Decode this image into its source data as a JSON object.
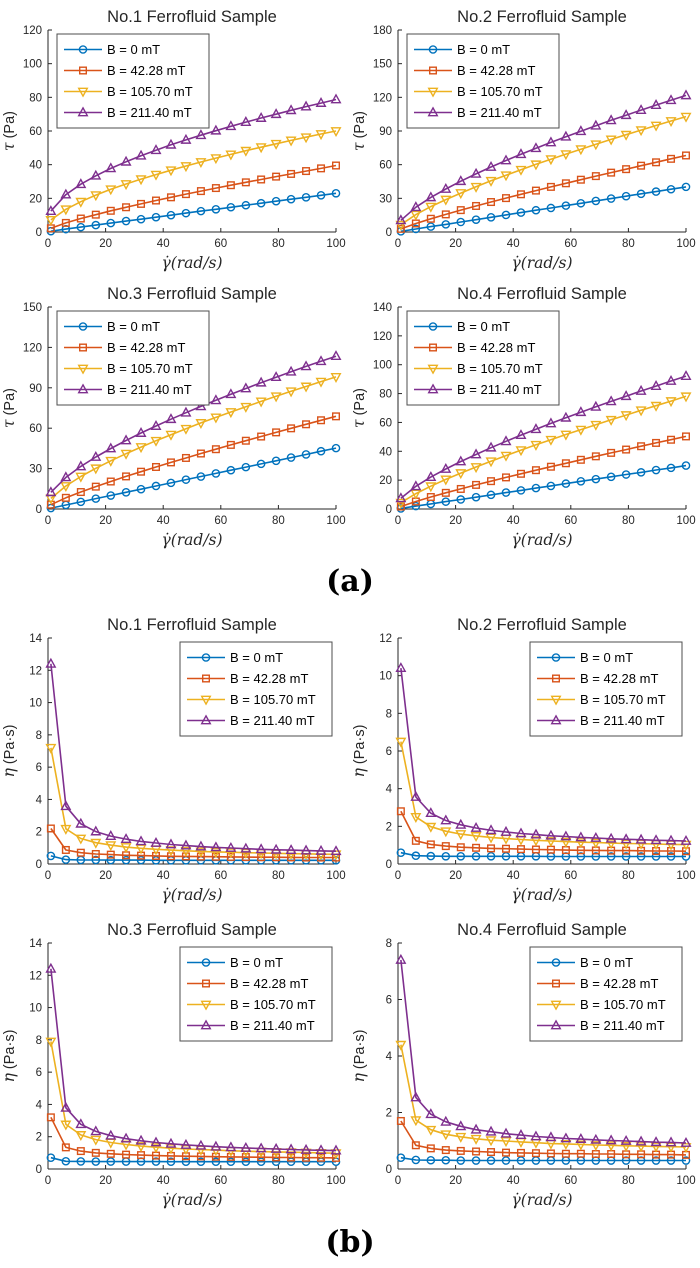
{
  "panel_labels": {
    "a": "(a)",
    "b": "(b)"
  },
  "axis_color": "#262626",
  "series_meta": [
    {
      "label": "B = 0 mT",
      "color": "#0072BD",
      "marker": "circle"
    },
    {
      "label": "B = 42.28 mT",
      "color": "#D95319",
      "marker": "square"
    },
    {
      "label": "B = 105.70 mT",
      "color": "#EDB120",
      "marker": "triangle-down"
    },
    {
      "label": "B = 211.40 mT",
      "color": "#7E2F8E",
      "marker": "triangle-up"
    }
  ],
  "x_values": [
    1,
    6.2,
    11.4,
    16.6,
    21.8,
    27.1,
    32.3,
    37.5,
    42.7,
    47.9,
    53.1,
    58.3,
    63.5,
    68.7,
    74,
    79.2,
    84.4,
    89.6,
    94.8,
    100
  ],
  "chart_data": [
    {
      "id": "a1",
      "type": "line",
      "panel": "a",
      "title": "No.1 Ferrofluid Sample",
      "xlabel": "γ̇(rad/s)",
      "ylabel_symbol": "τ",
      "ylabel_unit": " (Pa)",
      "xlim": [
        0,
        100
      ],
      "xticks": [
        0,
        20,
        40,
        60,
        80,
        100
      ],
      "ylim": [
        0,
        120
      ],
      "yticks": [
        0,
        20,
        40,
        60,
        80,
        100,
        120
      ],
      "legend_position": "northwest",
      "grid": false,
      "series": [
        {
          "name": "B = 0 mT",
          "values": [
            0.5,
            1.7,
            2.9,
            4.1,
            5.3,
            6.5,
            7.6,
            8.8,
            10,
            11.2,
            12.4,
            13.5,
            14.7,
            15.9,
            17.1,
            18.3,
            19.5,
            20.6,
            21.8,
            23
          ]
        },
        {
          "name": "B = 42.28 mT",
          "values": [
            2.2,
            5.4,
            8,
            10.3,
            12.6,
            14.7,
            16.7,
            18.7,
            20.6,
            22.5,
            24.3,
            26.1,
            27.8,
            29.5,
            31.2,
            32.9,
            34.5,
            36.2,
            37.8,
            39.5
          ]
        },
        {
          "name": "B = 105.70 mT",
          "values": [
            7.2,
            13.5,
            18,
            21.9,
            25.4,
            28.5,
            31.4,
            34.1,
            36.7,
            39.2,
            41.6,
            43.9,
            46.1,
            48.3,
            50.4,
            52.4,
            54.4,
            56.3,
            58.2,
            60
          ]
        },
        {
          "name": "B = 211.40 mT",
          "values": [
            12.4,
            22.2,
            28.4,
            33.4,
            37.8,
            41.7,
            45.3,
            48.6,
            51.8,
            54.7,
            57.5,
            60.2,
            62.8,
            65.3,
            67.7,
            70,
            72.3,
            74.5,
            76.6,
            78.7
          ]
        }
      ]
    },
    {
      "id": "a2",
      "type": "line",
      "panel": "a",
      "title": "No.2 Ferrofluid Sample",
      "xlabel": "γ̇(rad/s)",
      "ylabel_symbol": "τ",
      "ylabel_unit": " (Pa)",
      "xlim": [
        0,
        100
      ],
      "xticks": [
        0,
        20,
        40,
        60,
        80,
        100
      ],
      "ylim": [
        0,
        180
      ],
      "yticks": [
        0,
        30,
        60,
        90,
        120,
        150,
        180
      ],
      "legend_position": "northwest",
      "grid": false,
      "series": [
        {
          "name": "B = 0 mT",
          "values": [
            0.6,
            2.7,
            4.8,
            6.8,
            8.9,
            11,
            13.1,
            15.2,
            17.3,
            19.4,
            21.4,
            23.5,
            25.6,
            27.7,
            29.8,
            31.9,
            34,
            36,
            38.1,
            40.2
          ]
        },
        {
          "name": "B = 42.28 mT",
          "values": [
            2.8,
            7.6,
            11.8,
            15.7,
            19.5,
            23.2,
            26.7,
            30.2,
            33.6,
            36.9,
            40.2,
            43.4,
            46.6,
            49.8,
            52.9,
            56,
            59.1,
            62.1,
            65.2,
            68.2
          ]
        },
        {
          "name": "B = 105.70 mT",
          "values": [
            6.5,
            15.5,
            22.6,
            28.9,
            34.7,
            40.3,
            45.6,
            50.6,
            55.5,
            60.3,
            64.9,
            69.4,
            73.8,
            78.2,
            82.5,
            86.7,
            90.8,
            94.9,
            98.9,
            102.8
          ]
        },
        {
          "name": "B = 211.40 mT",
          "values": [
            10.4,
            22.1,
            30.8,
            38.3,
            45.3,
            51.8,
            57.9,
            63.7,
            69.3,
            74.6,
            79.8,
            84.9,
            89.8,
            94.7,
            99.5,
            104.1,
            108.6,
            113.1,
            117.4,
            121.7
          ]
        }
      ]
    },
    {
      "id": "a3",
      "type": "line",
      "panel": "a",
      "title": "No.3 Ferrofluid Sample",
      "xlabel": "γ̇(rad/s)",
      "ylabel_symbol": "τ",
      "ylabel_unit": " (Pa)",
      "xlim": [
        0,
        100
      ],
      "xticks": [
        0,
        20,
        40,
        60,
        80,
        100
      ],
      "ylim": [
        0,
        150
      ],
      "yticks": [
        0,
        30,
        60,
        90,
        120,
        150
      ],
      "legend_position": "northwest",
      "grid": false,
      "series": [
        {
          "name": "B = 0 mT",
          "values": [
            0.7,
            3,
            5.3,
            7.7,
            10,
            12.4,
            14.7,
            17.1,
            19.4,
            21.8,
            24.1,
            26.4,
            28.8,
            31.1,
            33.5,
            35.8,
            38.2,
            40.5,
            42.9,
            45.2
          ]
        },
        {
          "name": "B = 42.28 mT",
          "values": [
            3.2,
            8.3,
            12.6,
            16.6,
            20.4,
            24.2,
            27.7,
            31.2,
            34.6,
            37.9,
            41.2,
            44.4,
            47.6,
            50.7,
            53.8,
            56.9,
            59.9,
            62.9,
            65.9,
            68.8
          ]
        },
        {
          "name": "B = 105.70 mT",
          "values": [
            7.9,
            17.1,
            24.1,
            30.2,
            35.8,
            41.1,
            46,
            50.7,
            55.2,
            59.6,
            63.9,
            68,
            72,
            75.9,
            79.9,
            83.7,
            87.4,
            91,
            94.6,
            98.1
          ]
        },
        {
          "name": "B = 211.40 mT",
          "values": [
            12.4,
            23.5,
            31.6,
            38.6,
            44.9,
            50.9,
            56.4,
            61.6,
            66.7,
            71.5,
            76.2,
            80.7,
            85.2,
            89.5,
            93.8,
            97.9,
            101.9,
            105.9,
            109.7,
            113.5
          ]
        }
      ]
    },
    {
      "id": "a4",
      "type": "line",
      "panel": "a",
      "title": "No.4 Ferrofluid Sample",
      "xlabel": "γ̇(rad/s)",
      "ylabel_symbol": "τ",
      "ylabel_unit": " (Pa)",
      "xlim": [
        0,
        100
      ],
      "xticks": [
        0,
        20,
        40,
        60,
        80,
        100
      ],
      "ylim": [
        0,
        140
      ],
      "yticks": [
        0,
        20,
        40,
        60,
        80,
        100,
        120,
        140
      ],
      "legend_position": "northwest",
      "grid": false,
      "series": [
        {
          "name": "B = 0 mT",
          "values": [
            0.4,
            2,
            3.5,
            5.1,
            6.6,
            8.2,
            9.8,
            11.4,
            12.9,
            14.5,
            16,
            17.6,
            19.2,
            20.7,
            22.3,
            23.9,
            25.4,
            27,
            28.5,
            30.1
          ]
        },
        {
          "name": "B = 42.28 mT",
          "values": [
            1.7,
            5.2,
            8.3,
            11.2,
            13.9,
            16.7,
            19.3,
            21.9,
            24.4,
            26.9,
            29.3,
            31.7,
            34.1,
            36.5,
            38.9,
            41.2,
            43.5,
            45.8,
            48,
            50.3
          ]
        },
        {
          "name": "B = 105.70 mT",
          "values": [
            4.4,
            10.7,
            15.8,
            20.5,
            24.9,
            29.1,
            33.1,
            37,
            40.8,
            44.5,
            48,
            51.6,
            55,
            58.4,
            61.8,
            65.1,
            68.4,
            71.6,
            74.8,
            78.1
          ]
        },
        {
          "name": "B = 211.40 mT",
          "values": [
            7.4,
            15.7,
            22.1,
            27.7,
            32.9,
            37.8,
            42.5,
            46.9,
            51.2,
            55.3,
            59.3,
            63.2,
            67.1,
            70.8,
            74.6,
            78.2,
            81.8,
            85.2,
            88.7,
            92.1
          ]
        }
      ]
    },
    {
      "id": "b1",
      "type": "line",
      "panel": "b",
      "title": "No.1 Ferrofluid Sample",
      "xlabel": "γ̇(rad/s)",
      "ylabel_symbol": "η",
      "ylabel_unit": " (Pa·s)",
      "xlim": [
        0,
        100
      ],
      "xticks": [
        0,
        20,
        40,
        60,
        80,
        100
      ],
      "ylim": [
        0,
        14
      ],
      "yticks": [
        0,
        2,
        4,
        6,
        8,
        10,
        12,
        14
      ],
      "legend_position": "northeast",
      "grid": false,
      "series": [
        {
          "name": "B = 0 mT",
          "values": [
            0.5,
            0.27,
            0.25,
            0.25,
            0.24,
            0.24,
            0.24,
            0.23,
            0.23,
            0.23,
            0.23,
            0.23,
            0.23,
            0.23,
            0.23,
            0.23,
            0.23,
            0.23,
            0.23,
            0.23
          ]
        },
        {
          "name": "B = 42.28 mT",
          "values": [
            2.2,
            0.87,
            0.7,
            0.62,
            0.58,
            0.54,
            0.52,
            0.5,
            0.48,
            0.47,
            0.46,
            0.45,
            0.44,
            0.43,
            0.42,
            0.42,
            0.41,
            0.4,
            0.4,
            0.4
          ]
        },
        {
          "name": "B = 105.70 mT",
          "values": [
            7.2,
            2.18,
            1.58,
            1.32,
            1.17,
            1.05,
            0.97,
            0.91,
            0.86,
            0.82,
            0.78,
            0.75,
            0.73,
            0.7,
            0.68,
            0.66,
            0.64,
            0.63,
            0.61,
            0.6
          ]
        },
        {
          "name": "B = 211.40 mT",
          "values": [
            12.4,
            3.58,
            2.49,
            2.01,
            1.73,
            1.54,
            1.4,
            1.3,
            1.21,
            1.14,
            1.08,
            1.03,
            0.99,
            0.95,
            0.91,
            0.88,
            0.86,
            0.83,
            0.81,
            0.79
          ]
        }
      ]
    },
    {
      "id": "b2",
      "type": "line",
      "panel": "b",
      "title": "No.2 Ferrofluid Sample",
      "xlabel": "γ̇(rad/s)",
      "ylabel_symbol": "η",
      "ylabel_unit": " (Pa·s)",
      "xlim": [
        0,
        100
      ],
      "xticks": [
        0,
        20,
        40,
        60,
        80,
        100
      ],
      "ylim": [
        0,
        12
      ],
      "yticks": [
        0,
        2,
        4,
        6,
        8,
        10,
        12
      ],
      "legend_position": "northeast",
      "grid": false,
      "series": [
        {
          "name": "B = 0 mT",
          "values": [
            0.6,
            0.44,
            0.42,
            0.41,
            0.41,
            0.41,
            0.41,
            0.41,
            0.41,
            0.41,
            0.4,
            0.4,
            0.4,
            0.4,
            0.4,
            0.4,
            0.4,
            0.4,
            0.4,
            0.4
          ]
        },
        {
          "name": "B = 42.28 mT",
          "values": [
            2.8,
            1.23,
            1.04,
            0.95,
            0.89,
            0.86,
            0.83,
            0.81,
            0.79,
            0.77,
            0.76,
            0.74,
            0.73,
            0.72,
            0.71,
            0.71,
            0.7,
            0.69,
            0.69,
            0.68
          ]
        },
        {
          "name": "B = 105.70 mT",
          "values": [
            6.5,
            2.5,
            1.98,
            1.74,
            1.59,
            1.49,
            1.41,
            1.35,
            1.3,
            1.26,
            1.22,
            1.19,
            1.16,
            1.14,
            1.11,
            1.09,
            1.08,
            1.06,
            1.04,
            1.03
          ]
        },
        {
          "name": "B = 211.40 mT",
          "values": [
            10.4,
            3.56,
            2.7,
            2.31,
            2.08,
            1.91,
            1.79,
            1.7,
            1.62,
            1.56,
            1.5,
            1.46,
            1.41,
            1.38,
            1.34,
            1.31,
            1.29,
            1.26,
            1.24,
            1.22
          ]
        }
      ]
    },
    {
      "id": "b3",
      "type": "line",
      "panel": "b",
      "title": "No.3 Ferrofluid Sample",
      "xlabel": "γ̇(rad/s)",
      "ylabel_symbol": "η",
      "ylabel_unit": " (Pa·s)",
      "xlim": [
        0,
        100
      ],
      "xticks": [
        0,
        20,
        40,
        60,
        80,
        100
      ],
      "ylim": [
        0,
        14
      ],
      "yticks": [
        0,
        2,
        4,
        6,
        8,
        10,
        12,
        14
      ],
      "legend_position": "northeast",
      "grid": false,
      "series": [
        {
          "name": "B = 0 mT",
          "values": [
            0.7,
            0.48,
            0.47,
            0.46,
            0.46,
            0.46,
            0.46,
            0.46,
            0.45,
            0.45,
            0.45,
            0.45,
            0.45,
            0.45,
            0.45,
            0.45,
            0.45,
            0.45,
            0.45,
            0.45
          ]
        },
        {
          "name": "B = 42.28 mT",
          "values": [
            3.2,
            1.34,
            1.11,
            1,
            0.94,
            0.89,
            0.86,
            0.83,
            0.81,
            0.79,
            0.78,
            0.76,
            0.75,
            0.74,
            0.73,
            0.72,
            0.71,
            0.7,
            0.7,
            0.69
          ]
        },
        {
          "name": "B = 105.70 mT",
          "values": [
            7.9,
            2.76,
            2.11,
            1.82,
            1.64,
            1.52,
            1.42,
            1.35,
            1.29,
            1.24,
            1.2,
            1.17,
            1.13,
            1.1,
            1.08,
            1.06,
            1.04,
            1.02,
            1,
            0.98
          ]
        },
        {
          "name": "B = 211.40 mT",
          "values": [
            12.4,
            3.79,
            2.77,
            2.33,
            2.06,
            1.88,
            1.75,
            1.64,
            1.56,
            1.49,
            1.44,
            1.38,
            1.34,
            1.3,
            1.27,
            1.24,
            1.21,
            1.18,
            1.16,
            1.14
          ]
        }
      ]
    },
    {
      "id": "b4",
      "type": "line",
      "panel": "b",
      "title": "No.4 Ferrofluid Sample",
      "xlabel": "γ̇(rad/s)",
      "ylabel_symbol": "η",
      "ylabel_unit": " (Pa·s)",
      "xlim": [
        0,
        100
      ],
      "xticks": [
        0,
        20,
        40,
        60,
        80,
        100
      ],
      "ylim": [
        0,
        8
      ],
      "yticks": [
        0,
        2,
        4,
        6,
        8
      ],
      "legend_position": "northeast",
      "grid": false,
      "series": [
        {
          "name": "B = 0 mT",
          "values": [
            0.4,
            0.32,
            0.31,
            0.31,
            0.3,
            0.3,
            0.3,
            0.3,
            0.3,
            0.3,
            0.3,
            0.3,
            0.3,
            0.3,
            0.3,
            0.3,
            0.3,
            0.3,
            0.3,
            0.3
          ]
        },
        {
          "name": "B = 42.28 mT",
          "values": [
            1.7,
            0.84,
            0.73,
            0.67,
            0.64,
            0.62,
            0.6,
            0.58,
            0.57,
            0.56,
            0.55,
            0.54,
            0.54,
            0.53,
            0.53,
            0.52,
            0.52,
            0.51,
            0.51,
            0.5
          ]
        },
        {
          "name": "B = 105.70 mT",
          "values": [
            4.4,
            1.73,
            1.39,
            1.23,
            1.14,
            1.07,
            1.02,
            0.99,
            0.96,
            0.93,
            0.9,
            0.89,
            0.87,
            0.85,
            0.84,
            0.82,
            0.81,
            0.8,
            0.79,
            0.78
          ]
        },
        {
          "name": "B = 211.40 mT",
          "values": [
            7.4,
            2.53,
            1.94,
            1.67,
            1.51,
            1.39,
            1.32,
            1.25,
            1.2,
            1.15,
            1.12,
            1.08,
            1.06,
            1.03,
            1.01,
            0.99,
            0.97,
            0.95,
            0.94,
            0.92
          ]
        }
      ]
    }
  ]
}
